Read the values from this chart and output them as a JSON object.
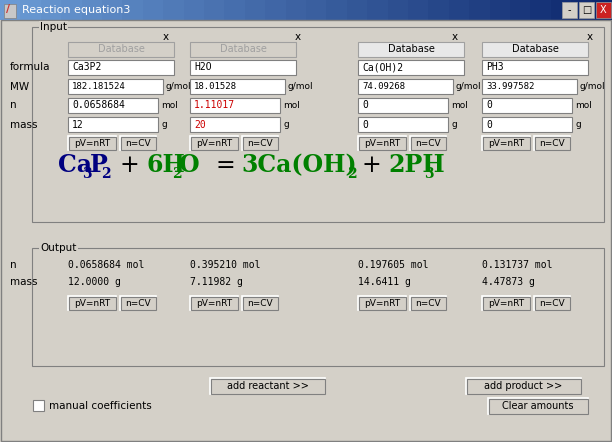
{
  "title": "Reaction equation3",
  "bg_color": "#d4d0c8",
  "titlebar_gradient_left": "#6685d4",
  "titlebar_gradient_right": "#1035a0",
  "input_label": "Input",
  "output_label": "Output",
  "formulas": [
    "Ca3P2",
    "H2O",
    "Ca(OH)2",
    "PH3"
  ],
  "mws": [
    "182.181524",
    "18.01528",
    "74.09268",
    "33.997582"
  ],
  "ns_input": [
    "0.0658684",
    "1.11017",
    "0",
    "0"
  ],
  "n_colors": [
    "#000000",
    "#cc0000",
    "#000000",
    "#000000"
  ],
  "masses_input": [
    "12",
    "20",
    "0",
    "0"
  ],
  "mass_colors": [
    "#000000",
    "#cc0000",
    "#000000",
    "#000000"
  ],
  "out_ns": [
    "0.0658684 mol",
    "0.395210 mol",
    "0.197605 mol",
    "0.131737 mol"
  ],
  "out_masses": [
    "12.0000 g",
    "7.11982 g",
    "14.6411 g",
    "4.47873 g"
  ],
  "dark_blue": "#000080",
  "green": "#008000",
  "black": "#000000",
  "db_grayed": [
    true,
    true,
    false,
    false
  ]
}
